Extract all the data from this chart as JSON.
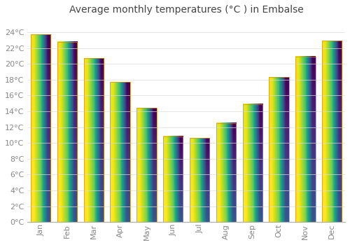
{
  "title": "Average monthly temperatures (°C ) in Embalse",
  "months": [
    "Jan",
    "Feb",
    "Mar",
    "Apr",
    "May",
    "Jun",
    "Jul",
    "Aug",
    "Sep",
    "Oct",
    "Nov",
    "Dec"
  ],
  "values": [
    23.7,
    22.8,
    20.7,
    17.7,
    14.4,
    10.8,
    10.6,
    12.5,
    14.9,
    18.3,
    20.9,
    22.9
  ],
  "bar_color_top": "#F5A800",
  "bar_color_bottom": "#FFCC44",
  "bar_edge_color": "#E09000",
  "background_color": "#FFFFFF",
  "grid_color": "#DDDDDD",
  "tick_label_color": "#888888",
  "title_color": "#444444",
  "ylim": [
    0,
    25.5
  ],
  "yticks": [
    0,
    2,
    4,
    6,
    8,
    10,
    12,
    14,
    16,
    18,
    20,
    22,
    24
  ],
  "title_fontsize": 10,
  "tick_fontsize": 8,
  "bar_width": 0.75
}
